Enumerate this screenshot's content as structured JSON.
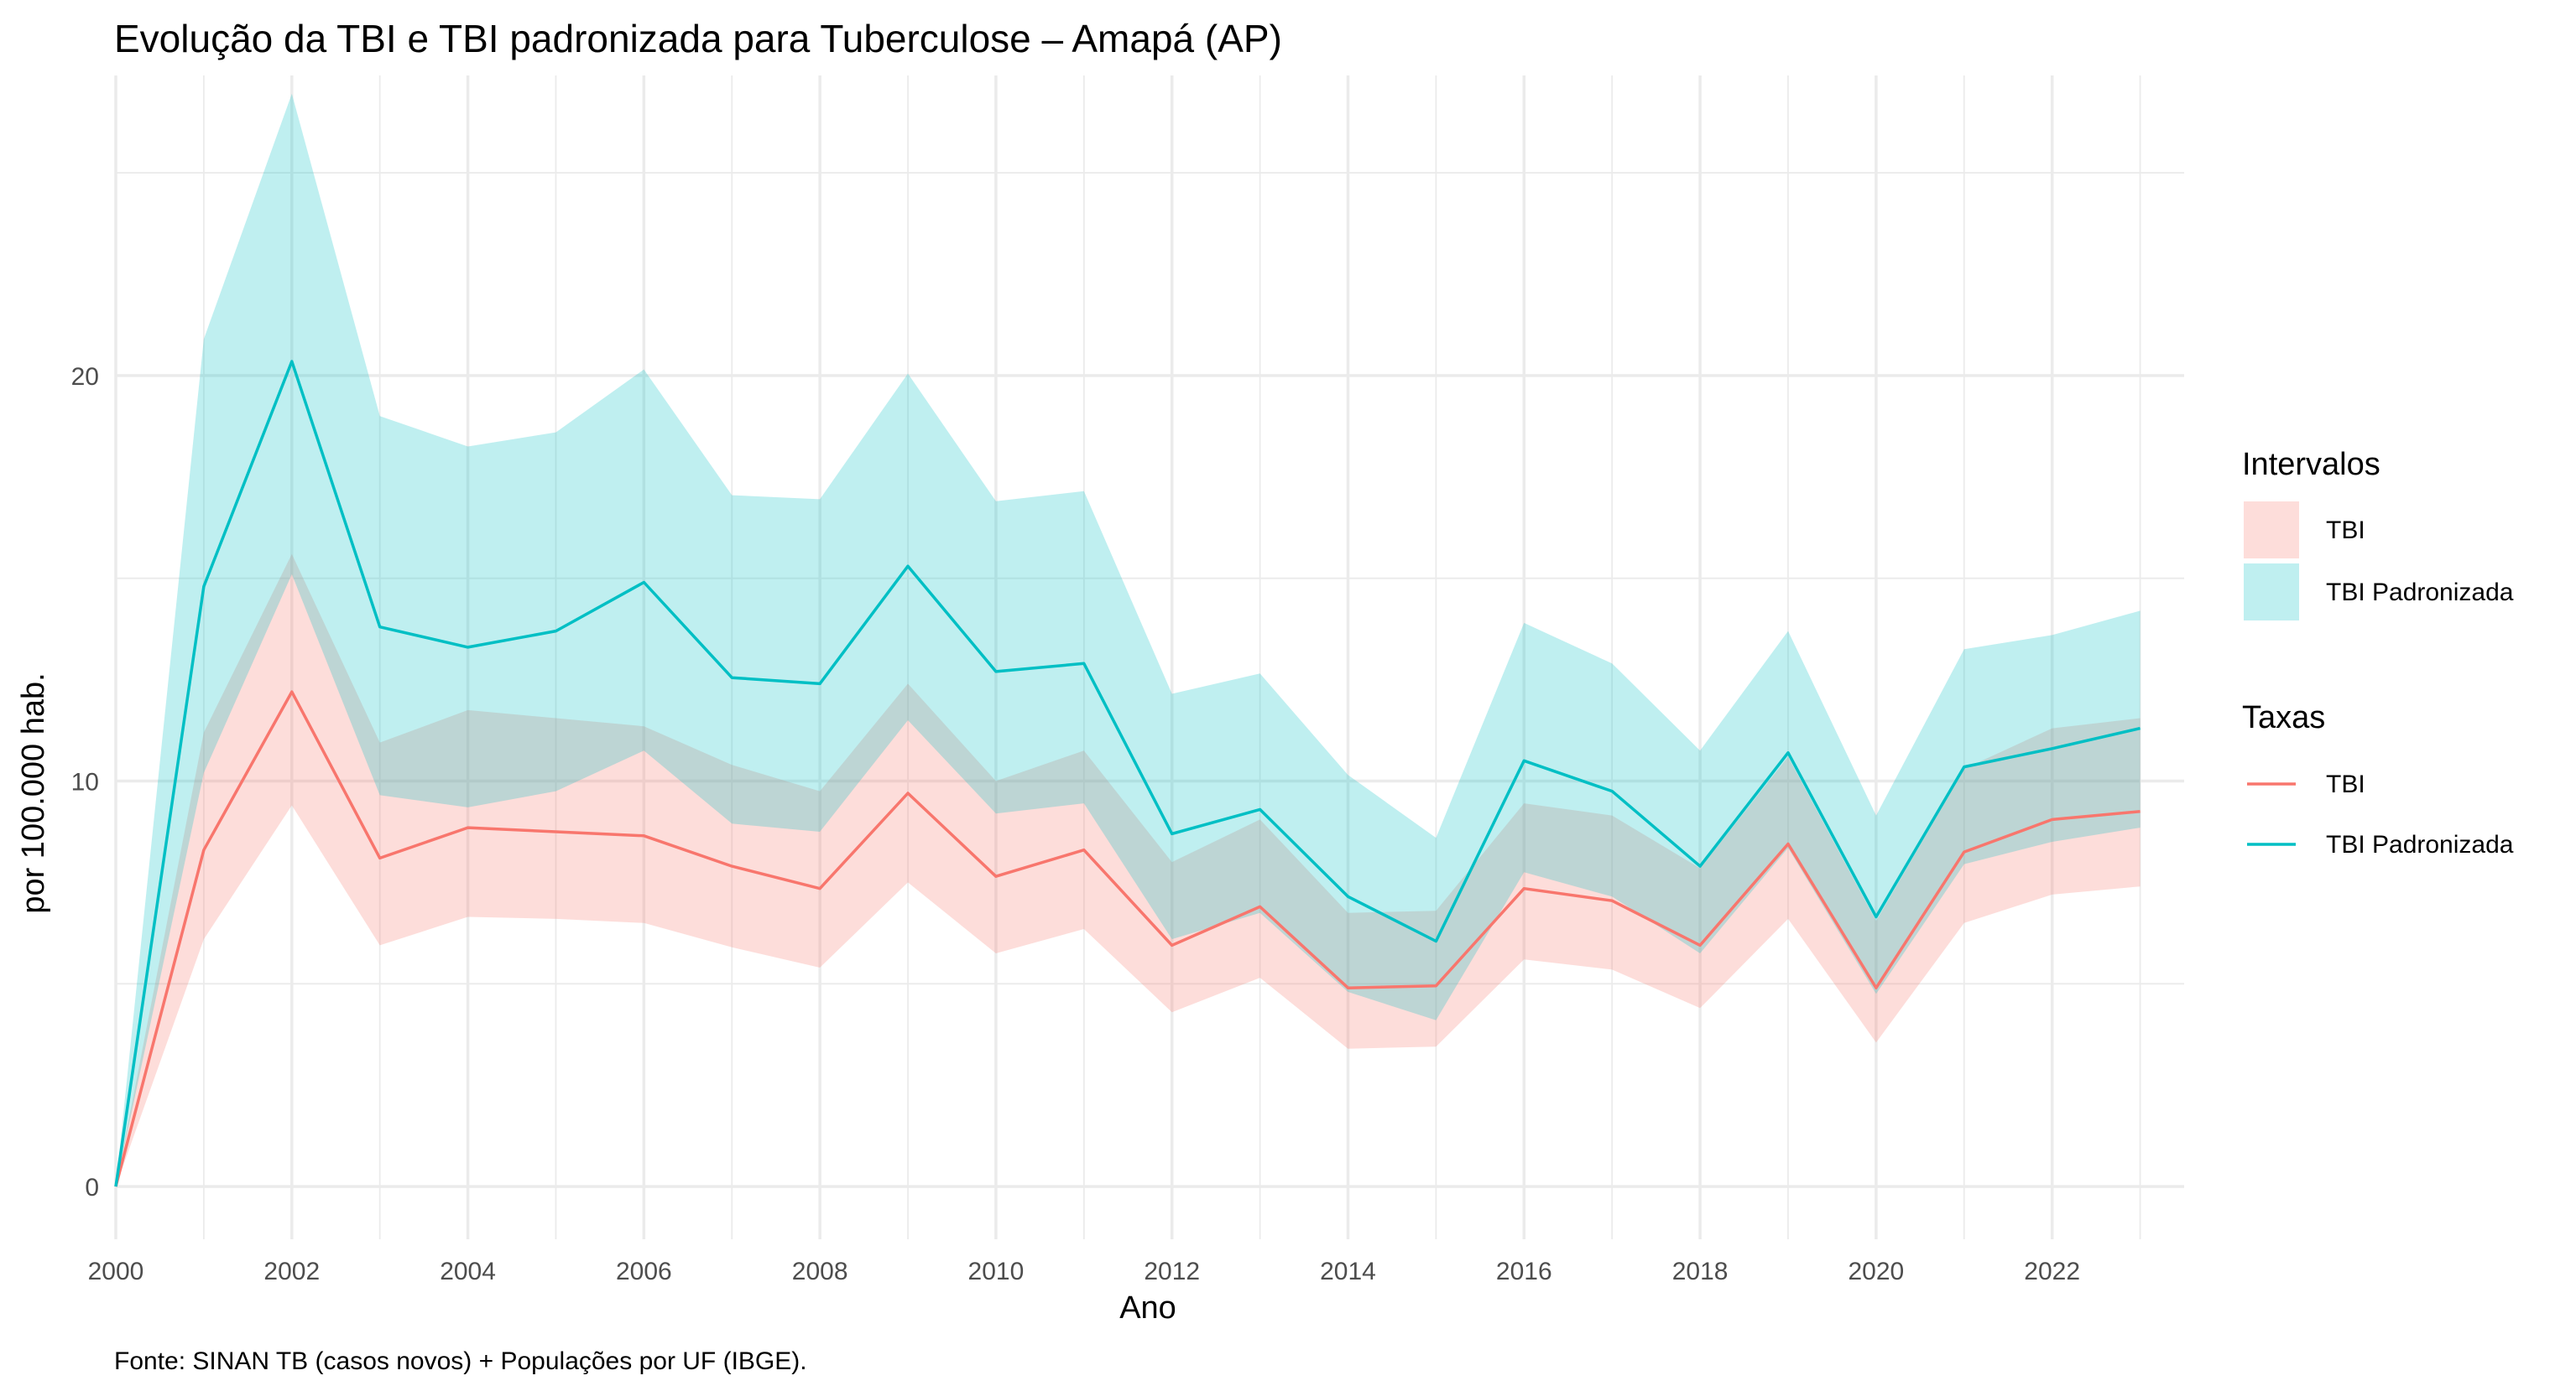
{
  "chart_data": {
    "type": "line",
    "title": "Evolução da TBI e TBI padronizada para Tuberculose – Amapá (AP)",
    "xlabel": "Ano",
    "ylabel": "por 100.000 hab.",
    "caption": "Fonte: SINAN TB (casos novos) + Populações por UF (IBGE).",
    "x": [
      2000,
      2001,
      2002,
      2003,
      2004,
      2005,
      2006,
      2007,
      2008,
      2009,
      2010,
      2011,
      2012,
      2013,
      2014,
      2015,
      2016,
      2017,
      2018,
      2019,
      2020,
      2021,
      2022,
      2023
    ],
    "xlim": [
      2000,
      2023.5
    ],
    "ylim": [
      -1.3,
      27.4
    ],
    "x_ticks": [
      "2000",
      "2002",
      "2004",
      "2006",
      "2008",
      "2010",
      "2012",
      "2014",
      "2016",
      "2018",
      "2020",
      "2022"
    ],
    "y_ticks": [
      "0",
      "10",
      "20"
    ],
    "grid": true,
    "legend_position": "right",
    "colors": {
      "tbi": "#F8766D",
      "tbi_pad": "#00BFC4",
      "tbi_ribbon": "#F8766D",
      "tbi_pad_ribbon": "#00BFC4",
      "grid": "#ebebeb"
    },
    "legend": {
      "intervals_title": "Intervalos",
      "rates_title": "Taxas",
      "series_labels": [
        "TBI",
        "TBI Padronizada"
      ]
    },
    "series": [
      {
        "name": "TBI",
        "values": [
          0.0,
          8.3,
          12.2,
          8.1,
          8.85,
          8.75,
          8.65,
          7.9,
          7.35,
          9.7,
          7.65,
          8.3,
          5.95,
          6.9,
          4.9,
          4.95,
          7.35,
          7.05,
          5.95,
          8.45,
          4.9,
          8.25,
          9.05,
          9.25
        ],
        "lower": [
          0.0,
          6.1,
          9.4,
          5.95,
          6.65,
          6.6,
          6.5,
          5.9,
          5.4,
          7.5,
          5.75,
          6.35,
          4.3,
          5.15,
          3.4,
          3.45,
          5.6,
          5.35,
          4.4,
          6.6,
          3.55,
          6.5,
          7.2,
          7.4
        ],
        "upper": [
          0.0,
          11.2,
          15.6,
          10.95,
          11.75,
          11.55,
          11.35,
          10.4,
          9.75,
          12.4,
          10.0,
          10.75,
          8.0,
          9.05,
          6.75,
          6.8,
          9.45,
          9.15,
          7.85,
          10.6,
          6.55,
          10.3,
          11.3,
          11.55
        ]
      },
      {
        "name": "TBI Padronizada",
        "values": [
          0.0,
          14.8,
          20.35,
          13.8,
          13.3,
          13.7,
          14.9,
          12.55,
          12.4,
          15.3,
          12.7,
          12.9,
          8.7,
          9.3,
          7.15,
          6.05,
          10.5,
          9.75,
          7.9,
          10.7,
          6.65,
          10.35,
          10.8,
          11.3
        ],
        "lower": [
          0.0,
          10.2,
          15.1,
          9.65,
          9.35,
          9.75,
          10.75,
          8.95,
          8.75,
          11.5,
          9.2,
          9.45,
          6.1,
          6.75,
          4.8,
          4.1,
          7.75,
          7.15,
          5.75,
          8.35,
          4.75,
          7.95,
          8.5,
          8.85
        ],
        "upper": [
          0.0,
          20.9,
          26.95,
          19.0,
          18.25,
          18.6,
          20.15,
          17.05,
          16.95,
          20.05,
          16.9,
          17.15,
          12.15,
          12.65,
          10.15,
          8.6,
          13.9,
          12.9,
          10.75,
          13.7,
          9.15,
          13.25,
          13.6,
          14.2
        ]
      }
    ]
  }
}
